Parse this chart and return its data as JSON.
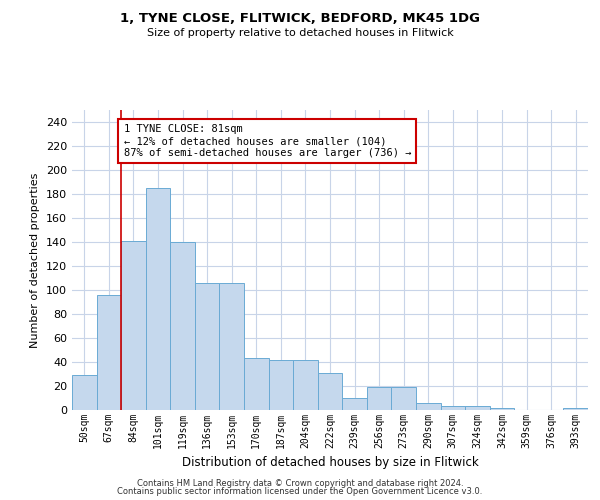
{
  "title": "1, TYNE CLOSE, FLITWICK, BEDFORD, MK45 1DG",
  "subtitle": "Size of property relative to detached houses in Flitwick",
  "xlabel": "Distribution of detached houses by size in Flitwick",
  "ylabel": "Number of detached properties",
  "bar_color": "#c5d8ed",
  "bar_edge_color": "#6aaad4",
  "categories": [
    "50sqm",
    "67sqm",
    "84sqm",
    "101sqm",
    "119sqm",
    "136sqm",
    "153sqm",
    "170sqm",
    "187sqm",
    "204sqm",
    "222sqm",
    "239sqm",
    "256sqm",
    "273sqm",
    "290sqm",
    "307sqm",
    "324sqm",
    "342sqm",
    "359sqm",
    "376sqm",
    "393sqm"
  ],
  "values": [
    29,
    96,
    141,
    185,
    140,
    106,
    106,
    43,
    42,
    42,
    31,
    10,
    19,
    19,
    6,
    3,
    3,
    2,
    0,
    0,
    2
  ],
  "annotation_text": "1 TYNE CLOSE: 81sqm\n← 12% of detached houses are smaller (104)\n87% of semi-detached houses are larger (736) →",
  "annotation_box_color": "#ffffff",
  "annotation_box_edge_color": "#cc0000",
  "vline_x": 1.5,
  "vline_color": "#cc0000",
  "ylim": [
    0,
    250
  ],
  "yticks": [
    0,
    20,
    40,
    60,
    80,
    100,
    120,
    140,
    160,
    180,
    200,
    220,
    240
  ],
  "background_color": "#ffffff",
  "grid_color": "#c8d4e8",
  "footer_line1": "Contains HM Land Registry data © Crown copyright and database right 2024.",
  "footer_line2": "Contains public sector information licensed under the Open Government Licence v3.0."
}
